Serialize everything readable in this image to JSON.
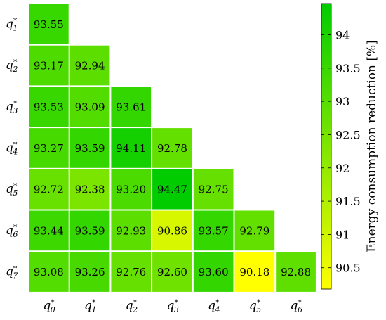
{
  "chart_data": {
    "type": "heatmap",
    "x_labels": [
      "q",
      "q",
      "q",
      "q",
      "q",
      "q",
      "q"
    ],
    "x_subscripts": [
      "0",
      "1",
      "2",
      "3",
      "4",
      "5",
      "6"
    ],
    "y_labels": [
      "q",
      "q",
      "q",
      "q",
      "q",
      "q",
      "q"
    ],
    "y_subscripts": [
      "1",
      "2",
      "3",
      "4",
      "5",
      "6",
      "7"
    ],
    "superscript": "*",
    "values": [
      [
        93.55
      ],
      [
        93.17,
        92.94
      ],
      [
        93.53,
        93.09,
        93.61
      ],
      [
        93.27,
        93.59,
        94.11,
        92.78
      ],
      [
        92.72,
        92.38,
        93.2,
        94.47,
        92.75
      ],
      [
        93.44,
        93.59,
        92.93,
        90.86,
        93.57,
        92.79
      ],
      [
        93.08,
        93.26,
        92.76,
        92.6,
        93.6,
        90.18,
        92.88
      ]
    ],
    "value_labels": [
      [
        "93.55"
      ],
      [
        "93.17",
        "92.94"
      ],
      [
        "93.53",
        "93.09",
        "93.61"
      ],
      [
        "93.27",
        "93.59",
        "94.11",
        "92.78"
      ],
      [
        "92.72",
        "92.38",
        "93.20",
        "94.47",
        "92.75"
      ],
      [
        "93.44",
        "93.59",
        "92.93",
        "90.86",
        "93.57",
        "92.79"
      ],
      [
        "93.08",
        "93.26",
        "92.76",
        "92.60",
        "93.60",
        "90.18",
        "92.88"
      ]
    ],
    "colorbar": {
      "label": "Energy consumption reduction [%]",
      "range": [
        90.18,
        94.47
      ],
      "ticks": [
        90.5,
        91,
        91.5,
        92,
        92.5,
        93,
        93.5,
        94
      ],
      "tick_labels": [
        "90.5",
        "91",
        "91.5",
        "92",
        "92.5",
        "93",
        "93.5",
        "94"
      ],
      "color_low": "#ffff00",
      "color_high": "#00cc00"
    }
  }
}
